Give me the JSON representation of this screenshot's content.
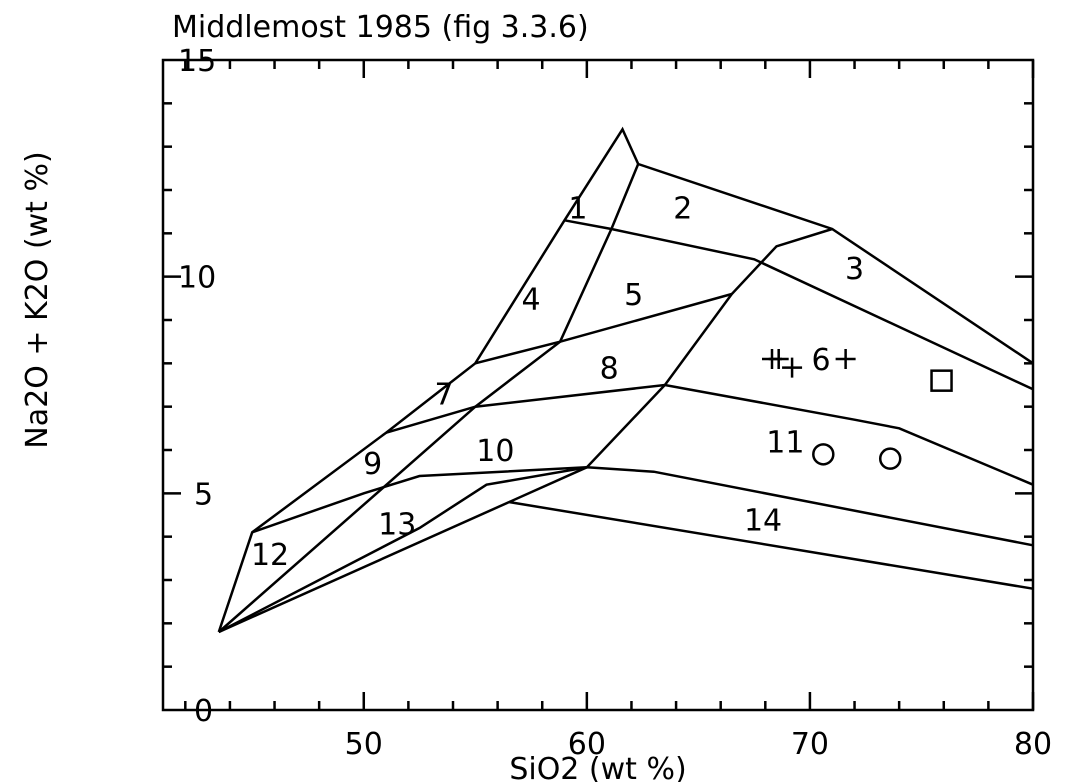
{
  "chart_data": {
    "type": "scatter",
    "title": "Middlemost 1985 (fig 3.3.6)",
    "xlabel": "SiO2  (wt %)",
    "ylabel": "Na2O + K2O  (wt %)",
    "xlim": [
      41,
      80
    ],
    "ylim": [
      0,
      15
    ],
    "x_ticks": [
      {
        "value": 50,
        "label": "50"
      },
      {
        "value": 60,
        "label": "60"
      },
      {
        "value": 70,
        "label": "70"
      },
      {
        "value": 80,
        "label": "80"
      }
    ],
    "y_ticks": [
      {
        "value": 0,
        "label": "0"
      },
      {
        "value": 5,
        "label": "5"
      },
      {
        "value": 10,
        "label": "10"
      },
      {
        "value": 15,
        "label": "15"
      }
    ],
    "grid": false,
    "legend": "none",
    "field_boundaries": [
      [
        [
          43.5,
          1.8
        ],
        [
          45.0,
          4.1
        ],
        [
          51.0,
          6.4
        ],
        [
          55.0,
          8.0
        ],
        [
          59.0,
          11.3
        ],
        [
          61.6,
          13.4
        ],
        [
          62.3,
          12.6
        ],
        [
          71.0,
          11.1
        ],
        [
          80.0,
          8.0
        ]
      ],
      [
        [
          43.5,
          1.8
        ],
        [
          60.0,
          5.6
        ]
      ],
      [
        [
          43.5,
          1.8
        ],
        [
          55.0,
          7.0
        ],
        [
          58.8,
          8.5
        ],
        [
          61.1,
          11.1
        ],
        [
          62.3,
          12.6
        ]
      ],
      [
        [
          43.5,
          1.8
        ],
        [
          52.5,
          4.2
        ],
        [
          55.5,
          5.2
        ],
        [
          60.0,
          5.6
        ],
        [
          63.5,
          7.5
        ],
        [
          66.5,
          9.6
        ],
        [
          68.5,
          10.7
        ],
        [
          71.0,
          11.1
        ]
      ],
      [
        [
          45.0,
          4.1
        ],
        [
          50.0,
          5.0
        ],
        [
          52.5,
          5.4
        ],
        [
          60.0,
          5.6
        ],
        [
          63.0,
          5.5
        ],
        [
          80.0,
          3.8
        ]
      ],
      [
        [
          56.5,
          4.8
        ],
        [
          80.0,
          2.8
        ]
      ],
      [
        [
          51.0,
          6.4
        ],
        [
          55.0,
          7.0
        ],
        [
          63.5,
          7.5
        ],
        [
          72.0,
          6.7
        ],
        [
          74.0,
          6.5
        ],
        [
          80.0,
          5.2
        ]
      ],
      [
        [
          55.0,
          8.0
        ],
        [
          58.8,
          8.5
        ],
        [
          66.5,
          9.6
        ]
      ],
      [
        [
          59.0,
          11.3
        ],
        [
          61.1,
          11.1
        ],
        [
          67.5,
          10.4
        ],
        [
          80.0,
          7.4
        ]
      ]
    ],
    "field_labels": [
      {
        "label": "1",
        "x": 59.6,
        "y": 11.6
      },
      {
        "label": "2",
        "x": 64.3,
        "y": 11.6
      },
      {
        "label": "3",
        "x": 72.0,
        "y": 10.2
      },
      {
        "label": "4",
        "x": 57.5,
        "y": 9.5
      },
      {
        "label": "5",
        "x": 62.1,
        "y": 9.6
      },
      {
        "label": "6",
        "x": 70.5,
        "y": 8.1
      },
      {
        "label": "7",
        "x": 53.6,
        "y": 7.3
      },
      {
        "label": "8",
        "x": 61.0,
        "y": 7.9
      },
      {
        "label": "9",
        "x": 50.4,
        "y": 5.7
      },
      {
        "label": "10",
        "x": 55.9,
        "y": 6.0
      },
      {
        "label": "11",
        "x": 68.9,
        "y": 6.2
      },
      {
        "label": "12",
        "x": 45.8,
        "y": 3.6
      },
      {
        "label": "13",
        "x": 51.5,
        "y": 4.3
      },
      {
        "label": "14",
        "x": 67.9,
        "y": 4.4
      }
    ],
    "series": [
      {
        "marker": "plus",
        "points": [
          [
            68.3,
            8.1
          ],
          [
            68.6,
            8.1
          ],
          [
            69.2,
            7.9
          ],
          [
            71.6,
            8.1
          ]
        ]
      },
      {
        "marker": "circle",
        "points": [
          [
            70.6,
            5.9
          ],
          [
            73.6,
            5.8
          ]
        ]
      },
      {
        "marker": "square",
        "points": [
          [
            75.9,
            7.6
          ]
        ]
      }
    ]
  }
}
